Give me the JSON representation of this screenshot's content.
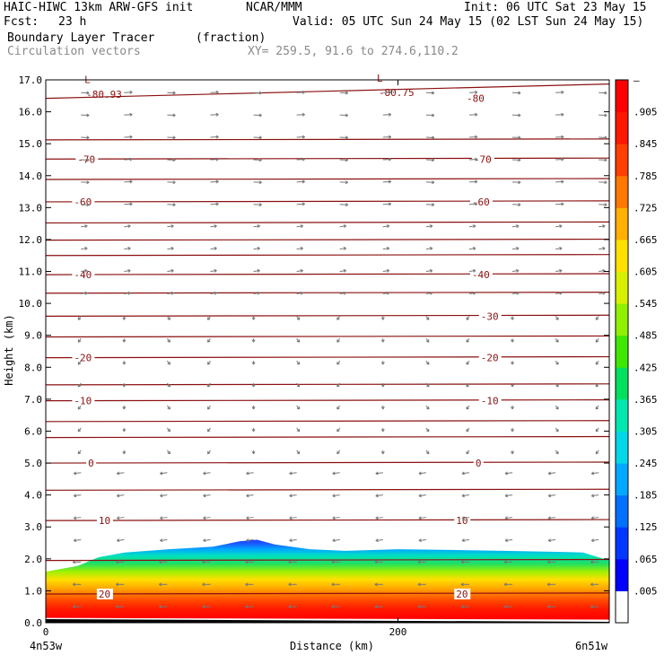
{
  "header": {
    "model": "HAIC-HIWC 13km ARW-GFS init",
    "org": "NCAR/MMM",
    "init": "Init: 06 UTC Sat 23 May 15",
    "fcst_label": "Fcst:",
    "fcst_value": "23 h",
    "valid": "Valid: 05 UTC Sun 24 May 15 (02 LST Sun 24 May 15)",
    "field": "Boundary Layer Tracer",
    "field_units": "(fraction)",
    "overlay": "Circulation vectors",
    "xy": "XY= 259.5, 91.6 to 274.6,110.2"
  },
  "chart_data": {
    "type": "heatmap",
    "xlabel": "Distance (km)",
    "ylabel": "Height (km)",
    "xlim": [
      0,
      320
    ],
    "ylim": [
      0,
      17
    ],
    "x_ticks": [
      0,
      200
    ],
    "y_ticks": [
      "0.0",
      "1.0",
      "2.0",
      "3.0",
      "4.0",
      "5.0",
      "6.0",
      "7.0",
      "8.0",
      "9.0",
      "10.0",
      "11.0",
      "12.0",
      "13.0",
      "14.0",
      "15.0",
      "16.0",
      "17.0"
    ],
    "x_endpoints": {
      "left": "4n53w",
      "right": "6n51w"
    },
    "colorbar": {
      "labels": [
        ".005",
        ".065",
        ".125",
        ".185",
        ".245",
        ".305",
        ".365",
        ".425",
        ".485",
        ".545",
        ".605",
        ".665",
        ".725",
        ".785",
        ".845",
        ".905"
      ],
      "top_label": "–",
      "colors": [
        "#ffffff",
        "#0000ff",
        "#0038ff",
        "#0070ff",
        "#00a8ff",
        "#00d8e8",
        "#00e8b0",
        "#00e060",
        "#40e800",
        "#90f000",
        "#d8f000",
        "#ffe000",
        "#ffb000",
        "#ff7800",
        "#ff4000",
        "#ff1800",
        "#ff0000"
      ]
    },
    "contours": [
      {
        "label": "-80",
        "levels_km": [
          16.42,
          16.42
        ]
      },
      {
        "label": "-70",
        "levels_km": [
          14.52,
          14.52
        ]
      },
      {
        "label": "-60",
        "levels_km": [
          13.18,
          13.18
        ]
      },
      {
        "label": "-40",
        "levels_km": [
          10.9,
          10.9
        ]
      },
      {
        "label": "-30",
        "levels_km": [
          9.6,
          9.6
        ]
      },
      {
        "label": "-20",
        "levels_km": [
          8.3,
          8.3
        ]
      },
      {
        "label": "-10",
        "levels_km": [
          6.95,
          6.95
        ]
      },
      {
        "label": "0",
        "levels_km": [
          5.0,
          5.0
        ]
      },
      {
        "label": "10",
        "levels_km": [
          3.2,
          3.2
        ]
      },
      {
        "label": "20",
        "levels_km": [
          0.9,
          0.9
        ]
      }
    ],
    "lows": [
      {
        "marker": "L",
        "value": "-80.93"
      },
      {
        "marker": "L",
        "value": "-80.75"
      }
    ]
  }
}
